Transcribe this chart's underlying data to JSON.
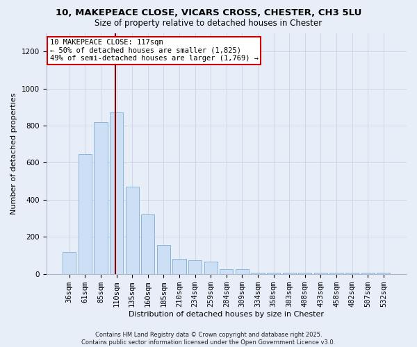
{
  "title1": "10, MAKEPEACE CLOSE, VICARS CROSS, CHESTER, CH3 5LU",
  "title2": "Size of property relative to detached houses in Chester",
  "xlabel": "Distribution of detached houses by size in Chester",
  "ylabel": "Number of detached properties",
  "categories": [
    "36sqm",
    "61sqm",
    "85sqm",
    "110sqm",
    "135sqm",
    "160sqm",
    "185sqm",
    "210sqm",
    "234sqm",
    "259sqm",
    "284sqm",
    "309sqm",
    "334sqm",
    "358sqm",
    "383sqm",
    "408sqm",
    "433sqm",
    "458sqm",
    "482sqm",
    "507sqm",
    "532sqm"
  ],
  "values": [
    120,
    645,
    820,
    870,
    470,
    320,
    155,
    80,
    75,
    65,
    25,
    25,
    5,
    5,
    5,
    5,
    5,
    5,
    5,
    5,
    5
  ],
  "bar_color": "#ccdff5",
  "bar_edge_color": "#89b4d9",
  "bg_color": "#e8eef8",
  "vline_x_index": 3,
  "vline_color": "#8b0000",
  "annotation_title": "10 MAKEPEACE CLOSE: 117sqm",
  "annotation_line1": "← 50% of detached houses are smaller (1,825)",
  "annotation_line2": "49% of semi-detached houses are larger (1,769) →",
  "annotation_box_facecolor": "#ffffff",
  "annotation_box_edgecolor": "#cc0000",
  "footer1": "Contains HM Land Registry data © Crown copyright and database right 2025.",
  "footer2": "Contains public sector information licensed under the Open Government Licence v3.0.",
  "ylim": [
    0,
    1300
  ],
  "yticks": [
    0,
    200,
    400,
    600,
    800,
    1000,
    1200
  ],
  "title1_fontsize": 9.5,
  "title2_fontsize": 8.5,
  "axis_label_fontsize": 8,
  "tick_fontsize": 7.5,
  "footer_fontsize": 6,
  "annotation_fontsize": 7.5
}
